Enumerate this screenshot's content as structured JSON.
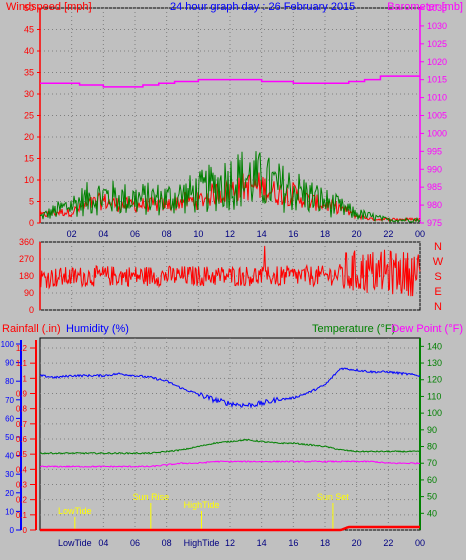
{
  "chart_data": [
    {
      "type": "line",
      "title": "24 hour graph day : 26 February 2015",
      "ylabel": "Windspeed [mph]",
      "y2label": "Barometer [mb]",
      "x_ticks": [
        "02",
        "04",
        "06",
        "08",
        "10",
        "12",
        "14",
        "16",
        "18",
        "20",
        "22",
        "00"
      ],
      "ylim": [
        0,
        50
      ],
      "y_ticks": [
        "0",
        "5",
        "10",
        "15",
        "20",
        "25",
        "30",
        "35",
        "40",
        "45",
        "50"
      ],
      "y2lim": [
        975,
        1035
      ],
      "y2_ticks": [
        "975",
        "980",
        "985",
        "990",
        "995",
        "1000",
        "1005",
        "1010",
        "1015",
        "1020",
        "1025",
        "1030",
        "1035"
      ],
      "grid": true,
      "series": [
        {
          "name": "Windspeed [mph]",
          "color": "#ff0000",
          "x": [
            0,
            1,
            2,
            3,
            4,
            5,
            6,
            7,
            8,
            9,
            10,
            11,
            12,
            13,
            14,
            15,
            16,
            17,
            18,
            19,
            20,
            21,
            22,
            23,
            24
          ],
          "values": [
            2,
            3,
            3,
            5,
            6,
            5,
            5,
            5,
            5,
            6,
            6,
            8,
            9,
            10,
            10,
            8,
            8,
            6,
            5,
            4,
            2,
            1,
            1,
            1,
            1
          ]
        },
        {
          "name": "Wind gust",
          "color": "#008000",
          "x": [
            0,
            1,
            2,
            3,
            4,
            5,
            6,
            7,
            8,
            9,
            10,
            11,
            12,
            13,
            14,
            15,
            16,
            17,
            18,
            19,
            20,
            21,
            22,
            23,
            24
          ],
          "values": [
            2,
            4,
            6,
            8,
            9,
            8,
            8,
            8,
            8,
            9,
            10,
            12,
            14,
            15,
            14,
            12,
            11,
            9,
            7,
            5,
            3,
            2,
            1,
            1,
            1
          ]
        },
        {
          "name": "Barometer [mb]",
          "color": "#ff00ff",
          "x": [
            0,
            1.5,
            2.5,
            4,
            5.5,
            6.5,
            7.5,
            8.5,
            10,
            12,
            14,
            16,
            18,
            19.5,
            20.5,
            21.5,
            23,
            24
          ],
          "values": [
            1014,
            1014,
            1013.5,
            1013,
            1013,
            1013.5,
            1014,
            1014.5,
            1015,
            1015,
            1014.5,
            1014,
            1014,
            1014.5,
            1015,
            1016,
            1016,
            1016
          ]
        }
      ]
    },
    {
      "type": "scatter",
      "ylabel": "N W S E N",
      "y_ticks": [
        "0",
        "90",
        "180",
        "270",
        "360"
      ],
      "ylim": [
        0,
        360
      ],
      "x_ticks": [],
      "grid": true,
      "series": [
        {
          "name": "Wind direction",
          "color": "#ff0000",
          "x": [
            0,
            2,
            4,
            6,
            8,
            10,
            12,
            14,
            16,
            18,
            20,
            22,
            24
          ],
          "values": [
            170,
            175,
            180,
            180,
            180,
            180,
            180,
            180,
            180,
            180,
            200,
            200,
            190
          ]
        }
      ]
    },
    {
      "type": "line",
      "ylabel": "Rainfall (.in)",
      "ylabel2": "Humidity (%)",
      "y2label": "Temperature (°F)",
      "y2label2": "Dew Point (°F)",
      "x_ticks": [
        "LowTide",
        "04",
        "06",
        "08",
        "HighTide",
        "12",
        "14",
        "16",
        "18",
        "20",
        "22",
        "00"
      ],
      "rain_ticks": [
        "0",
        "0.1",
        "0.2",
        "0.3",
        "0.4",
        "0.5",
        "0.6",
        "0.7",
        "0.8",
        "0.9",
        "1",
        "1.1",
        "1.2"
      ],
      "rain_ylim": [
        0,
        1.2
      ],
      "humidity_ticks": [
        "0",
        "10",
        "20",
        "30",
        "40",
        "50",
        "60",
        "70",
        "80",
        "90",
        "100"
      ],
      "humidity_ylim": [
        0,
        100
      ],
      "temp_ticks": [
        "40",
        "50",
        "60",
        "70",
        "80",
        "90",
        "100",
        "110",
        "120",
        "130",
        "140"
      ],
      "temp_ylim": [
        30,
        145
      ],
      "grid": true,
      "annotations": [
        {
          "label": "LowTide",
          "x": 2.2
        },
        {
          "label": "Sun Rise",
          "x": 7.0
        },
        {
          "label": "HighTide",
          "x": 10.2
        },
        {
          "label": "Sun Set",
          "x": 18.5
        }
      ],
      "series": [
        {
          "name": "Humidity (%)",
          "color": "#0000ff",
          "axis": "humidity",
          "x": [
            0,
            1,
            2,
            3,
            4,
            5,
            6,
            7,
            8,
            9,
            10,
            11,
            12,
            13,
            14,
            15,
            16,
            17,
            18,
            19,
            20,
            21,
            22,
            23,
            24
          ],
          "values": [
            83,
            82,
            83,
            83,
            83,
            84,
            83,
            82,
            80,
            76,
            73,
            70,
            68,
            67,
            68,
            70,
            71,
            74,
            78,
            87,
            86,
            85,
            85,
            84,
            83
          ]
        },
        {
          "name": "Temperature (°F)",
          "color": "#008000",
          "axis": "temp",
          "x": [
            0,
            1,
            2,
            3,
            4,
            5,
            6,
            7,
            8,
            9,
            10,
            11,
            12,
            13,
            14,
            15,
            16,
            17,
            18,
            19,
            20,
            21,
            22,
            23,
            24
          ],
          "values": [
            76,
            76,
            76,
            76,
            76,
            76,
            76,
            76,
            77,
            78,
            80,
            82,
            83,
            84,
            83,
            82,
            82,
            81,
            80,
            78,
            77,
            77,
            77,
            77,
            77
          ]
        },
        {
          "name": "Dew Point (°F)",
          "color": "#ff00ff",
          "axis": "temp",
          "x": [
            0,
            1,
            2,
            3,
            4,
            5,
            6,
            7,
            8,
            9,
            10,
            11,
            12,
            13,
            14,
            15,
            16,
            17,
            18,
            19,
            20,
            21,
            22,
            23,
            24
          ],
          "values": [
            68,
            68,
            68,
            68,
            68,
            68,
            68,
            68,
            69,
            70,
            70,
            71,
            71,
            71,
            71,
            71,
            71,
            71,
            71,
            71,
            71,
            71,
            70,
            70,
            70
          ]
        },
        {
          "name": "Rainfall (.in)",
          "color": "#ff0000",
          "axis": "rain",
          "x": [
            0,
            4,
            8,
            12,
            16,
            19,
            19.5,
            20,
            22,
            24
          ],
          "values": [
            0,
            0,
            0,
            0,
            0,
            0,
            0.02,
            0.02,
            0.02,
            0.02
          ]
        }
      ]
    }
  ]
}
